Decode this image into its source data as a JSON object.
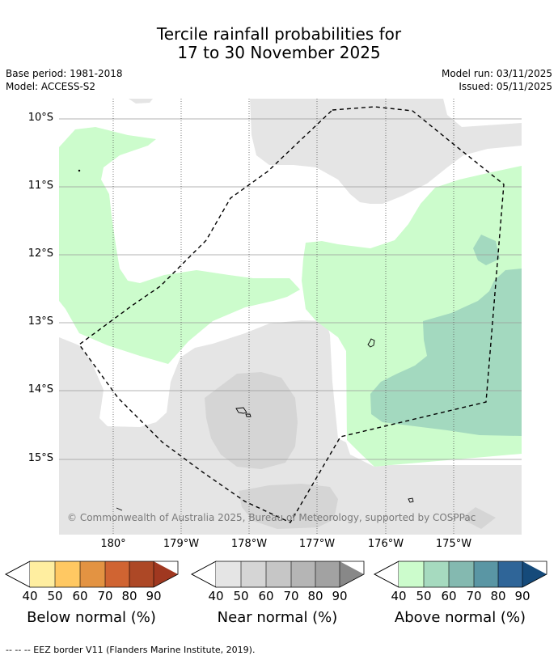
{
  "title": {
    "line1": "Tercile rainfall probabilities for",
    "line2": "17 to 30 November 2025"
  },
  "meta": {
    "base_period": "Base period: 1981-2018",
    "model": "Model: ACCESS-S2",
    "model_run": "Model run: 03/11/2025",
    "issued": "Issued: 05/11/2025"
  },
  "map": {
    "lat_labels": [
      "10°S",
      "11°S",
      "12°S",
      "13°S",
      "14°S",
      "15°S"
    ],
    "lon_labels": [
      "180°",
      "179°W",
      "178°W",
      "177°W",
      "176°W",
      "175°W"
    ],
    "copyright": "© Commonwealth of Australia 2025, Bureau of Meteorology, supported by COSPPac",
    "colors": {
      "near_normal_40": "#e5e5e5",
      "near_normal_50": "#d5d5d5",
      "above_normal_40": "#ccfccc",
      "above_normal_50": "#a3d9bf",
      "eez_border": "#000000"
    }
  },
  "legend": {
    "ticks": [
      "40",
      "50",
      "60",
      "70",
      "80",
      "90"
    ],
    "below": {
      "label": "Below normal (%)",
      "colors": [
        "#ffeea0",
        "#ffc862",
        "#e39342",
        "#d06432",
        "#ad4826",
        "#a03820"
      ]
    },
    "near": {
      "label": "Near normal (%)",
      "colors": [
        "#e5e5e5",
        "#d5d5d5",
        "#c6c6c6",
        "#b5b5b5",
        "#a2a2a2",
        "#888888"
      ]
    },
    "above": {
      "label": "Above normal (%)",
      "colors": [
        "#ccfccc",
        "#a6dabf",
        "#84b9b0",
        "#5a96a4",
        "#2f6598",
        "#154a7a"
      ]
    }
  },
  "footer": "--  --  -- EEZ border V11 (Flanders Marine Institute, 2019)."
}
